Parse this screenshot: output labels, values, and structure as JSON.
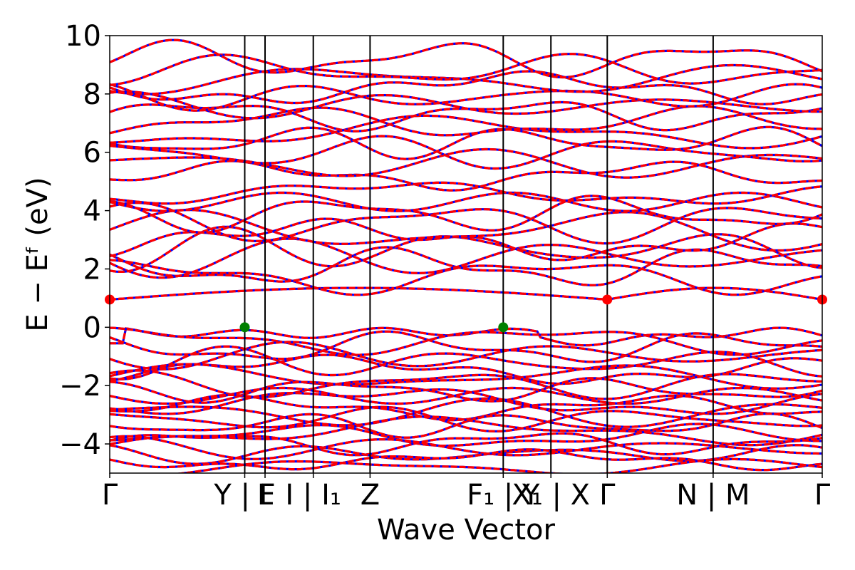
{
  "chart_data": {
    "type": "line",
    "title": "",
    "xlabel": "Wave Vector",
    "ylabel": "E − Eᶠ (eV)",
    "ylim": [
      -5,
      10
    ],
    "yticks": [
      {
        "value": -4,
        "label": "−4"
      },
      {
        "value": -2,
        "label": "−2"
      },
      {
        "value": 0,
        "label": "0"
      },
      {
        "value": 2,
        "label": "2"
      },
      {
        "value": 4,
        "label": "4"
      },
      {
        "value": 6,
        "label": "6"
      },
      {
        "value": 8,
        "label": "8"
      },
      {
        "value": 10,
        "label": "10"
      }
    ],
    "kpath_length": 1.0,
    "high_symmetry_points": [
      {
        "k": 0.0,
        "label": "Γ"
      },
      {
        "k": 0.1895,
        "label": "Y | F"
      },
      {
        "k": 0.218,
        "label": "L"
      },
      {
        "k": 0.2857,
        "label": "I | I₁"
      },
      {
        "k": 0.3654,
        "label": "Z"
      },
      {
        "k": 0.5523,
        "label": "F₁ | Y"
      },
      {
        "k": 0.6192,
        "label": "X₁ | X"
      },
      {
        "k": 0.6983,
        "label": "Γ"
      },
      {
        "k": 0.8469,
        "label": "N | M"
      },
      {
        "k": 1.0,
        "label": "Γ"
      }
    ],
    "valence_band_max": {
      "energy": 0.0,
      "k": [
        0.1895,
        0.5523
      ],
      "color": "#008000"
    },
    "conduction_band_min": {
      "energy": 0.95,
      "k": [
        0.0,
        0.6983,
        1.0
      ],
      "color": "#ff0000"
    },
    "series": [
      {
        "spin": "up",
        "color": "#0000ff",
        "style": "solid"
      },
      {
        "spin": "down",
        "color": "#ff0000",
        "style": "dashed"
      }
    ],
    "bands": {
      "valence": [
        {
          "base": 0.0,
          "amp": 0.55
        },
        {
          "base": -0.45,
          "amp": 0.35
        },
        {
          "base": -0.7,
          "amp": 0.4
        },
        {
          "base": -0.95,
          "amp": 0.35
        },
        {
          "base": -1.2,
          "amp": 0.4
        },
        {
          "base": -1.45,
          "amp": 0.35
        },
        {
          "base": -1.7,
          "amp": 0.3
        },
        {
          "base": -1.95,
          "amp": 0.35
        },
        {
          "base": -2.15,
          "amp": 0.3
        },
        {
          "base": -2.35,
          "amp": 0.3
        },
        {
          "base": -2.55,
          "amp": 0.35
        },
        {
          "base": -2.75,
          "amp": 0.3
        },
        {
          "base": -2.95,
          "amp": 0.35
        },
        {
          "base": -3.15,
          "amp": 0.3
        },
        {
          "base": -3.35,
          "amp": 0.3
        },
        {
          "base": -3.55,
          "amp": 0.35
        },
        {
          "base": -3.75,
          "amp": 0.3
        },
        {
          "base": -3.95,
          "amp": 0.3
        },
        {
          "base": -4.15,
          "amp": 0.3
        },
        {
          "base": -4.35,
          "amp": 0.25
        },
        {
          "base": -4.55,
          "amp": 0.25
        },
        {
          "base": -4.8,
          "amp": 0.2
        }
      ],
      "conduction": [
        {
          "base": 1.35,
          "amp": 0.4
        },
        {
          "base": 1.75,
          "amp": 0.45
        },
        {
          "base": 2.05,
          "amp": 0.5
        },
        {
          "base": 2.4,
          "amp": 0.5
        },
        {
          "base": 2.7,
          "amp": 0.55
        },
        {
          "base": 3.0,
          "amp": 0.5
        },
        {
          "base": 3.3,
          "amp": 0.5
        },
        {
          "base": 3.6,
          "amp": 0.5
        },
        {
          "base": 3.9,
          "amp": 0.45
        },
        {
          "base": 4.3,
          "amp": 0.35
        },
        {
          "base": 4.6,
          "amp": 0.3
        },
        {
          "base": 5.2,
          "amp": 0.35
        },
        {
          "base": 5.6,
          "amp": 0.35
        },
        {
          "base": 6.0,
          "amp": 0.4
        },
        {
          "base": 6.35,
          "amp": 0.4
        },
        {
          "base": 6.7,
          "amp": 0.4
        },
        {
          "base": 7.0,
          "amp": 0.4
        },
        {
          "base": 7.3,
          "amp": 0.4
        },
        {
          "base": 7.6,
          "amp": 0.35
        },
        {
          "base": 7.9,
          "amp": 0.35
        },
        {
          "base": 8.2,
          "amp": 0.4
        },
        {
          "base": 8.5,
          "amp": 0.35
        },
        {
          "base": 8.8,
          "amp": 0.4
        },
        {
          "base": 9.2,
          "amp": 0.45
        }
      ]
    }
  }
}
